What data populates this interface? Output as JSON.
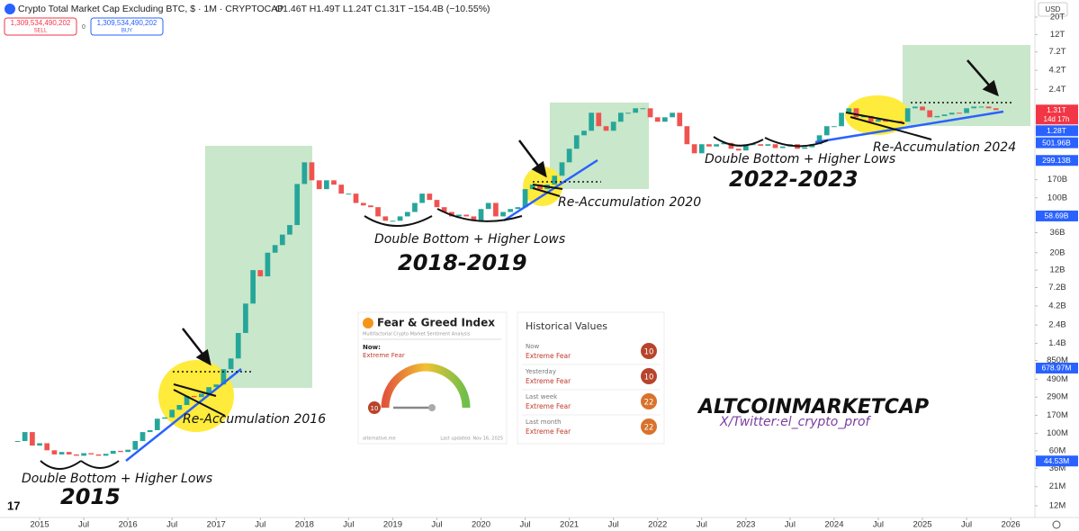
{
  "header": {
    "title": "Crypto Total Market Cap Excluding BTC, $ · 1M · CRYPTOCAP",
    "ohlc": "O1.46T H1.49T L1.24T C1.31T −154.4B (−10.55%)",
    "sell_price": "1,309,534,490,202",
    "sell": "SELL",
    "spread": "0",
    "buy_price": "1,309,534,490,202",
    "buy": "BUY",
    "currency": "USD"
  },
  "chart_data": {
    "type": "candlestick",
    "log_scale": true,
    "grid": false,
    "up_color": "#26a69a",
    "down_color": "#ef5350",
    "x": [
      2014.75,
      2014.833,
      2014.917,
      2015,
      2015.083,
      2015.167,
      2015.25,
      2015.333,
      2015.417,
      2015.5,
      2015.583,
      2015.667,
      2015.75,
      2015.833,
      2015.917,
      2016,
      2016.083,
      2016.167,
      2016.25,
      2016.333,
      2016.417,
      2016.5,
      2016.583,
      2016.667,
      2016.75,
      2016.833,
      2016.917,
      2017,
      2017.083,
      2017.167,
      2017.25,
      2017.333,
      2017.417,
      2017.5,
      2017.583,
      2017.667,
      2017.75,
      2017.833,
      2017.917,
      2018,
      2018.083,
      2018.167,
      2018.25,
      2018.333,
      2018.417,
      2018.5,
      2018.583,
      2018.667,
      2018.75,
      2018.833,
      2018.917,
      2019,
      2019.083,
      2019.167,
      2019.25,
      2019.333,
      2019.417,
      2019.5,
      2019.583,
      2019.667,
      2019.75,
      2019.833,
      2019.917,
      2020,
      2020.083,
      2020.167,
      2020.25,
      2020.333,
      2020.417,
      2020.5,
      2020.583,
      2020.667,
      2020.75,
      2020.833,
      2020.917,
      2021,
      2021.083,
      2021.167,
      2021.25,
      2021.333,
      2021.417,
      2021.5,
      2021.583,
      2021.667,
      2021.75,
      2021.833,
      2021.917,
      2022,
      2022.083,
      2022.167,
      2022.25,
      2022.333,
      2022.417,
      2022.5,
      2022.583,
      2022.667,
      2022.75,
      2022.833,
      2022.917,
      2023,
      2023.083,
      2023.167,
      2023.25,
      2023.333,
      2023.417,
      2023.5,
      2023.583,
      2023.667,
      2023.75,
      2023.833,
      2023.917,
      2024,
      2024.083,
      2024.167,
      2024.25,
      2024.333,
      2024.417,
      2024.5,
      2024.583,
      2024.667,
      2024.75,
      2024.833,
      2024.917,
      2025,
      2025.083,
      2025.167,
      2025.25,
      2025.333,
      2025.417,
      2025.5,
      2025.583,
      2025.667,
      2025.75,
      2025.833
    ],
    "values": [
      80000000.0,
      104000000.0,
      70000000.0,
      75000000.0,
      61000000.0,
      54000000.0,
      58000000.0,
      54000000.0,
      52000000.0,
      56000000.0,
      54000000.0,
      52000000.0,
      55000000.0,
      60000000.0,
      58000000.0,
      62000000.0,
      80000000.0,
      104000000.0,
      110000000.0,
      154000000.0,
      160000000.0,
      200000000.0,
      230000000.0,
      300000000.0,
      290000000.0,
      320000000.0,
      388000000.0,
      420000000.0,
      658000000.0,
      900000000.0,
      1900000000.0,
      4500000000.0,
      12000000000.0,
      10000000000.0,
      20000000000.0,
      25000000000.0,
      34000000000.0,
      45000000000.0,
      150000000000.0,
      283000000000.0,
      167000000000.0,
      129000000000.0,
      167000000000.0,
      147000000000.0,
      113000000000.0,
      113000000000.0,
      86000000000.0,
      80000000000.0,
      76000000000.0,
      58000000000.0,
      51000000000.0,
      51000000000.0,
      58000000000.0,
      66000000000.0,
      86000000000.0,
      113000000000.0,
      94000000000.0,
      76000000000.0,
      66000000000.0,
      58000000000.0,
      61000000000.0,
      58000000000.0,
      51000000000.0,
      72000000000.0,
      86000000000.0,
      58000000000.0,
      66000000000.0,
      72000000000.0,
      76000000000.0,
      129000000000.0,
      147000000000.0,
      129000000000.0,
      147000000000.0,
      191000000000.0,
      283000000000.0,
      421000000000.0,
      625000000000.0,
      714000000000.0,
      1210000000000.0,
      816000000000.0,
      714000000000.0,
      930000000000.0,
      1210000000000.0,
      1210000000000.0,
      1380000000000.0,
      1380000000000.0,
      1060000000000.0,
      930000000000.0,
      1060000000000.0,
      1210000000000.0,
      816000000000.0,
      481000000000.0,
      369000000000.0,
      481000000000.0,
      450000000000.0,
      481000000000.0,
      500000000000.0,
      421000000000.0,
      400000000000.0,
      481000000000.0,
      481000000000.0,
      460000000000.0,
      481000000000.0,
      430000000000.0,
      450000000000.0,
      481000000000.0,
      421000000000.0,
      440000000000.0,
      481000000000.0,
      625000000000.0,
      816000000000.0,
      816000000000.0,
      1210000000000.0,
      1380000000000.0,
      1060000000000.0,
      1100000000000.0,
      930000000000.0,
      1000000000000.0,
      930000000000.0,
      950000000000.0,
      930000000000.0,
      1380000000000.0,
      1450000000000.0,
      1300000000000.0,
      1060000000000.0,
      1100000000000.0,
      1150000000000.0,
      1210000000000.0,
      1200000000000.0,
      1380000000000.0,
      1450000000000.0,
      1450000000000.0,
      1380000000000.0,
      1310000000000.0
    ],
    "xlim": [
      2014.551,
      2026.274
    ],
    "ylim": [
      8500000.0,
      33000000000000.0
    ],
    "xticks": [
      2015,
      {
        "value": 2015.5,
        "label": "Jul"
      },
      2016,
      {
        "value": 2016.5,
        "label": "Jul"
      },
      2017,
      {
        "value": 2017.5,
        "label": "Jul"
      },
      2018,
      {
        "value": 2018.5,
        "label": "Jul"
      },
      2019,
      {
        "value": 2019.5,
        "label": "Jul"
      },
      2020,
      {
        "value": 2020.5,
        "label": "Jul"
      },
      2021,
      {
        "value": 2021.5,
        "label": "Jul"
      },
      2022,
      {
        "value": 2022.5,
        "label": "Jul"
      },
      2023,
      {
        "value": 2023.5,
        "label": "Jul"
      },
      2024,
      {
        "value": 2024.5,
        "label": "Jul"
      },
      2025,
      {
        "value": 2025.5,
        "label": "Jul"
      },
      2026
    ],
    "yticks": [
      {
        "value": 20000000000000.0,
        "label": "20T"
      },
      {
        "value": 12000000000000.0,
        "label": "12T"
      },
      {
        "value": 7200000000000.0,
        "label": "7.2T"
      },
      {
        "value": 4200000000000.0,
        "label": "4.2T"
      },
      {
        "value": 2400000000000.0,
        "label": "2.4T"
      },
      {
        "value": 170000000000.0,
        "label": "170B"
      },
      {
        "value": 100000000000.0,
        "label": "100B"
      },
      {
        "value": 36000000000.0,
        "label": "36B"
      },
      {
        "value": 20000000000.0,
        "label": "20B"
      },
      {
        "value": 12000000000.0,
        "label": "12B"
      },
      {
        "value": 7200000000.0,
        "label": "7.2B"
      },
      {
        "value": 4200000000.0,
        "label": "4.2B"
      },
      {
        "value": 2400000000.0,
        "label": "2.4B"
      },
      {
        "value": 1400000000.0,
        "label": "1.4B"
      },
      {
        "value": 850000000.0,
        "label": "850M"
      },
      {
        "value": 490000000.0,
        "label": "490M"
      },
      {
        "value": 290000000.0,
        "label": "290M"
      },
      {
        "value": 170000000.0,
        "label": "170M"
      },
      {
        "value": 100000000.0,
        "label": "100M"
      },
      {
        "value": 60000000.0,
        "label": "60M"
      },
      {
        "value": 36000000.0,
        "label": "36M"
      },
      {
        "value": 21000000.0,
        "label": "21M"
      },
      {
        "value": 12000000.0,
        "label": "12M"
      }
    ],
    "price_labels": [
      {
        "value": 1310000000000.0,
        "label": "1.31T",
        "sublabel": "14d 17h",
        "color": "#f23645"
      },
      {
        "value": 1280000000000.0,
        "label": "1.28T",
        "color": "#2962ff"
      },
      {
        "value": 501960000000.0,
        "label": "501.96B",
        "color": "#2962ff"
      },
      {
        "value": 299130000000.0,
        "label": "299.13B",
        "color": "#2962ff"
      },
      {
        "value": 58690000000.0,
        "label": "58.69B",
        "color": "#2962ff"
      },
      {
        "value": 678970000.0,
        "label": "678.97M",
        "color": "#2962ff"
      },
      {
        "value": 44530000.0,
        "label": "44.53M",
        "color": "#2962ff"
      }
    ],
    "annotations": [
      "Double Bottom + Higher Lows",
      "2015",
      "Re-Accumulation 2016",
      "Double Bottom + Higher Lows",
      "2018-2019",
      "Re-Accumulation 2020",
      "Double Bottom + Higher Lows",
      "2022-2023",
      "Re-Accumulation 2024",
      "ALTCOINMARKETCAP",
      "X/Twitter:el_crypto_prof"
    ]
  },
  "fear_greed": {
    "title": "Fear & Greed Index",
    "subtitle": "Multifactorial Crypto Market Sentiment Analysis",
    "now_label": "Now:",
    "now_status": "Extreme Fear",
    "now_value": 10,
    "source": "alternative.me",
    "updated": "Last updated: Nov 16, 2025"
  },
  "historical": {
    "title": "Historical Values",
    "rows": [
      {
        "label": "Now",
        "status": "Extreme Fear",
        "value": 10,
        "color": "#b8432b"
      },
      {
        "label": "Yesterday",
        "status": "Extreme Fear",
        "value": 10,
        "color": "#b8432b"
      },
      {
        "label": "Last week",
        "status": "Extreme Fear",
        "value": 22,
        "color": "#d9722c"
      },
      {
        "label": "Last month",
        "status": "Extreme Fear",
        "value": 22,
        "color": "#d9722c"
      }
    ]
  }
}
